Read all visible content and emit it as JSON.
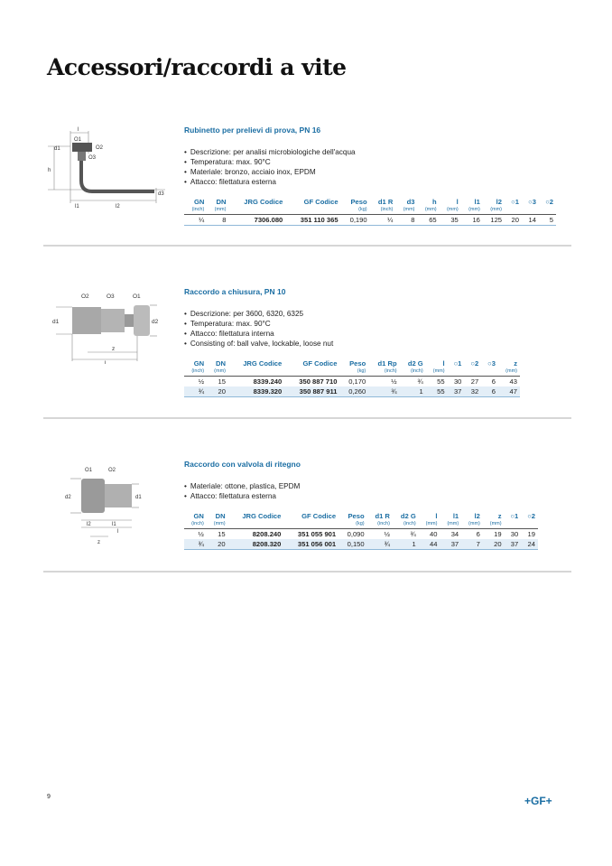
{
  "page_title": "Accessori/raccordi a vite",
  "page_number": "9",
  "logo": "+GF+",
  "sections": [
    {
      "title": "Rubinetto per prelievi di prova, PN 16",
      "bullets": [
        "Descrizione: per analisi microbiologiche dell'acqua",
        "Temperatura: max. 90°C",
        "Materiale: bronzo, acciaio inox, EPDM",
        "Attacco: filettatura esterna"
      ],
      "columns": [
        {
          "label": "GN",
          "unit": "(inch)"
        },
        {
          "label": "DN",
          "unit": "(mm)"
        },
        {
          "label": "JRG Codice",
          "unit": ""
        },
        {
          "label": "GF Codice",
          "unit": ""
        },
        {
          "label": "Peso",
          "unit": "(kg)"
        },
        {
          "label": "d1 R",
          "unit": "(inch)"
        },
        {
          "label": "d3",
          "unit": "(mm)"
        },
        {
          "label": "h",
          "unit": "(mm)"
        },
        {
          "label": "l",
          "unit": "(mm)"
        },
        {
          "label": "l1",
          "unit": "(mm)"
        },
        {
          "label": "l2",
          "unit": "(mm)"
        },
        {
          "label": "○1",
          "unit": ""
        },
        {
          "label": "○3",
          "unit": ""
        },
        {
          "label": "○2",
          "unit": ""
        }
      ],
      "rows": [
        [
          "¼",
          "8",
          "7306.080",
          "351 110 365",
          "0,190",
          "¼",
          "8",
          "65",
          "35",
          "16",
          "125",
          "20",
          "14",
          "5"
        ]
      ],
      "drawing_labels": [
        "l",
        "O1",
        "O2",
        "O3",
        "d1",
        "h",
        "d3",
        "l1",
        "l2"
      ]
    },
    {
      "title": "Raccordo a chiusura, PN 10",
      "bullets": [
        "Descrizione: per 3600, 6320, 6325",
        "Temperatura: max. 90°C",
        "Attacco: filettatura interna",
        "Consisting of: ball valve, lockable, loose nut"
      ],
      "columns": [
        {
          "label": "GN",
          "unit": "(inch)"
        },
        {
          "label": "DN",
          "unit": "(mm)"
        },
        {
          "label": "JRG Codice",
          "unit": ""
        },
        {
          "label": "GF Codice",
          "unit": ""
        },
        {
          "label": "Peso",
          "unit": "(kg)"
        },
        {
          "label": "d1 Rp",
          "unit": "(inch)"
        },
        {
          "label": "d2 G",
          "unit": "(inch)"
        },
        {
          "label": "l",
          "unit": "(mm)"
        },
        {
          "label": "○1",
          "unit": ""
        },
        {
          "label": "○2",
          "unit": ""
        },
        {
          "label": "○3",
          "unit": ""
        },
        {
          "label": "z",
          "unit": "(mm)"
        }
      ],
      "rows": [
        [
          "½",
          "15",
          "8339.240",
          "350 887 710",
          "0,170",
          "½",
          "¾",
          "55",
          "30",
          "27",
          "6",
          "43"
        ],
        [
          "¾",
          "20",
          "8339.320",
          "350 887 911",
          "0,260",
          "¾",
          "1",
          "55",
          "37",
          "32",
          "6",
          "47"
        ]
      ],
      "drawing_labels": [
        "O2",
        "O3",
        "O1",
        "d1",
        "d2",
        "z",
        "l"
      ]
    },
    {
      "title": "Raccordo con valvola di ritegno",
      "bullets": [
        "Materiale: ottone, plastica, EPDM",
        "Attacco: filettatura esterna"
      ],
      "columns": [
        {
          "label": "GN",
          "unit": "(inch)"
        },
        {
          "label": "DN",
          "unit": "(mm)"
        },
        {
          "label": "JRG Codice",
          "unit": ""
        },
        {
          "label": "GF Codice",
          "unit": ""
        },
        {
          "label": "Peso",
          "unit": "(kg)"
        },
        {
          "label": "d1 R",
          "unit": "(inch)"
        },
        {
          "label": "d2 G",
          "unit": "(inch)"
        },
        {
          "label": "l",
          "unit": "(mm)"
        },
        {
          "label": "l1",
          "unit": "(mm)"
        },
        {
          "label": "l2",
          "unit": "(mm)"
        },
        {
          "label": "z",
          "unit": "(mm)"
        },
        {
          "label": "○1",
          "unit": ""
        },
        {
          "label": "○2",
          "unit": ""
        }
      ],
      "rows": [
        [
          "½",
          "15",
          "8208.240",
          "351 055 901",
          "0,090",
          "½",
          "¾",
          "40",
          "34",
          "6",
          "19",
          "30",
          "19"
        ],
        [
          "¾",
          "20",
          "8208.320",
          "351 056 001",
          "0,150",
          "¾",
          "1",
          "44",
          "37",
          "7",
          "20",
          "37",
          "24"
        ]
      ],
      "drawing_labels": [
        "O1",
        "O2",
        "d2",
        "d1",
        "l2",
        "l1",
        "l",
        "z"
      ]
    }
  ],
  "colors": {
    "accent": "#1b6ea3",
    "row_alt": "#e3eef7",
    "separator": "#d6d6d6"
  }
}
